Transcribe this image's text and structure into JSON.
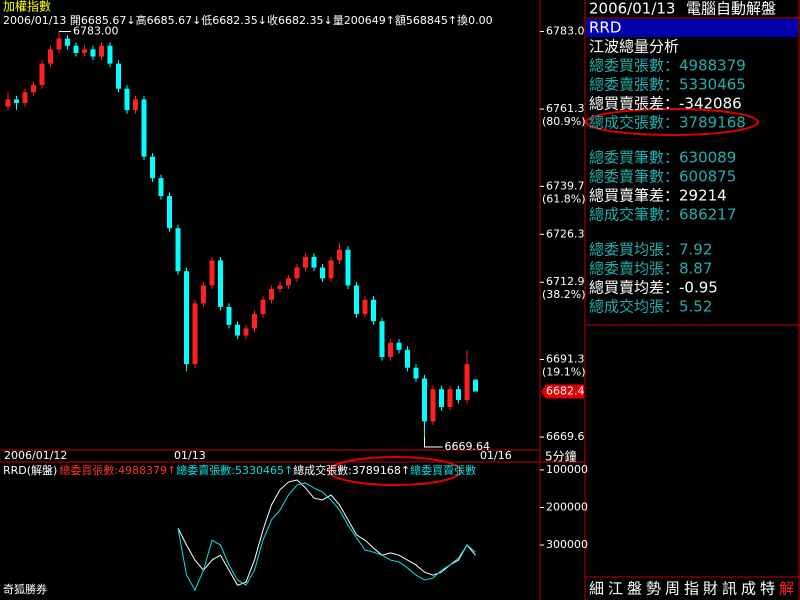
{
  "header": {
    "title": "加權指數",
    "quote": "2006/01/13 開6685.67↓高6685.67↓低6682.35↓收6682.35↓量200649↑額568845↑換0.00"
  },
  "chart_data": [
    {
      "type": "candlestick",
      "up_color": "#ff2020",
      "down_color": "#00ffff",
      "ylim": [
        6666,
        6789
      ],
      "yticks": [
        {
          "value": 6783,
          "label": "6783.0"
        },
        {
          "value": 6761.3,
          "label": "6761.3",
          "sublabel": "(80.9%)"
        },
        {
          "value": 6739.7,
          "label": "6739.7",
          "sublabel": "(61.8%)"
        },
        6726.3,
        {
          "value": 6712.9,
          "label": "6712.9",
          "sublabel": "(38.2%)"
        },
        {
          "value": 6691.3,
          "label": "6691.3",
          "sublabel": "(19.1%)"
        },
        6669.6
      ],
      "x_labels": [
        {
          "index": 0,
          "label": "2006/01/12"
        },
        {
          "index": 20,
          "label": "01/13"
        },
        {
          "index": 56,
          "label": "01/16"
        }
      ],
      "period": "5分鐘",
      "annotations": [
        {
          "index": 6,
          "value": 6783,
          "label": "6783.00",
          "at": "high"
        },
        {
          "index": 49,
          "value": 6669.64,
          "label": "6669.64",
          "at": "low"
        }
      ],
      "last_price": {
        "value": 6682.35,
        "label": "6682.4"
      },
      "ohlc": [
        [
          6762,
          6766,
          6761,
          6764
        ],
        [
          6764,
          6765,
          6761,
          6763
        ],
        [
          6763,
          6767,
          6762,
          6766
        ],
        [
          6766,
          6769,
          6765,
          6768
        ],
        [
          6768,
          6775,
          6767,
          6774
        ],
        [
          6774,
          6779,
          6773,
          6778
        ],
        [
          6778,
          6783,
          6777,
          6781
        ],
        [
          6781,
          6782,
          6778,
          6779
        ],
        [
          6779,
          6780,
          6776,
          6777
        ],
        [
          6777,
          6779,
          6776,
          6778
        ],
        [
          6778,
          6779,
          6775,
          6776
        ],
        [
          6776,
          6780,
          6775,
          6779
        ],
        [
          6779,
          6780,
          6773,
          6774
        ],
        [
          6774,
          6775,
          6766,
          6767
        ],
        [
          6767,
          6768,
          6760,
          6761
        ],
        [
          6761,
          6765,
          6760,
          6764
        ],
        [
          6764,
          6765,
          6747,
          6748
        ],
        [
          6748,
          6749,
          6741,
          6742
        ],
        [
          6742,
          6743,
          6736,
          6737
        ],
        [
          6737,
          6738,
          6727,
          6728
        ],
        [
          6728,
          6729,
          6715,
          6716
        ],
        [
          6716,
          6717,
          6688,
          6690
        ],
        [
          6690,
          6708,
          6689,
          6707
        ],
        [
          6707,
          6713,
          6706,
          6712
        ],
        [
          6712,
          6720,
          6711,
          6719
        ],
        [
          6719,
          6720,
          6705,
          6706
        ],
        [
          6706,
          6707,
          6700,
          6701
        ],
        [
          6701,
          6702,
          6697,
          6698
        ],
        [
          6698,
          6701,
          6697,
          6700
        ],
        [
          6700,
          6705,
          6699,
          6704
        ],
        [
          6704,
          6709,
          6703,
          6708
        ],
        [
          6708,
          6712,
          6707,
          6711
        ],
        [
          6711,
          6713,
          6710,
          6712
        ],
        [
          6712,
          6715,
          6711,
          6714
        ],
        [
          6714,
          6718,
          6713,
          6717
        ],
        [
          6717,
          6721,
          6716,
          6720
        ],
        [
          6720,
          6721,
          6716,
          6717
        ],
        [
          6717,
          6718,
          6713,
          6714
        ],
        [
          6714,
          6720,
          6713,
          6719
        ],
        [
          6719,
          6724,
          6718,
          6722
        ],
        [
          6722,
          6723,
          6711,
          6712
        ],
        [
          6712,
          6713,
          6703,
          6704
        ],
        [
          6704,
          6709,
          6703,
          6708
        ],
        [
          6708,
          6709,
          6701,
          6702
        ],
        [
          6702,
          6703,
          6691,
          6692
        ],
        [
          6692,
          6697,
          6691,
          6696
        ],
        [
          6696,
          6697,
          6693,
          6694
        ],
        [
          6694,
          6695,
          6688,
          6689
        ],
        [
          6689,
          6690,
          6685,
          6686
        ],
        [
          6686,
          6687,
          6669.64,
          6674
        ],
        [
          6674,
          6684,
          6673,
          6683
        ],
        [
          6683,
          6684,
          6677,
          6678
        ],
        [
          6678,
          6684,
          6677,
          6683
        ],
        [
          6683,
          6684,
          6679,
          6680
        ],
        [
          6680,
          6694,
          6679,
          6690
        ],
        [
          6685.67,
          6685.67,
          6682.35,
          6682.35
        ]
      ]
    },
    {
      "type": "line",
      "title": "RRD(解盤)",
      "legend": [
        {
          "text": "總委買張數:4988379↑",
          "color": "#ff3030"
        },
        {
          "text": "總委賣張數:5330465↑",
          "color": "#00e0e0"
        },
        {
          "text": "總成交張數:3789168↑",
          "color": "#ffffff"
        },
        {
          "text": "總委買賣張數",
          "color": "#00e0e0"
        }
      ],
      "ylim": [
        79000,
        433000
      ],
      "inverted": true,
      "yticks": [
        100000,
        200000,
        300000
      ],
      "series": [
        {
          "color": "#ffffff",
          "values": [
            null,
            null,
            null,
            null,
            null,
            null,
            null,
            null,
            null,
            null,
            null,
            null,
            null,
            null,
            null,
            null,
            null,
            null,
            null,
            null,
            255000,
            300000,
            340000,
            367000,
            340000,
            327000,
            367000,
            407000,
            399000,
            340000,
            260000,
            193000,
            153000,
            132000,
            127000,
            148000,
            175000,
            180000,
            167000,
            193000,
            233000,
            273000,
            287000,
            308000,
            327000,
            321000,
            327000,
            340000,
            353000,
            372000,
            380000,
            372000,
            353000,
            340000,
            300000,
            327000
          ]
        },
        {
          "color": "#00e8e8",
          "values": [
            null,
            null,
            null,
            null,
            null,
            null,
            null,
            null,
            null,
            null,
            null,
            null,
            null,
            null,
            null,
            null,
            null,
            null,
            null,
            null,
            255000,
            380000,
            420000,
            367000,
            287000,
            300000,
            353000,
            393000,
            407000,
            367000,
            287000,
            233000,
            207000,
            167000,
            140000,
            135000,
            148000,
            159000,
            180000,
            207000,
            247000,
            281000,
            313000,
            319000,
            327000,
            340000,
            345000,
            361000,
            380000,
            393000,
            388000,
            367000,
            353000,
            335000,
            300000,
            319000
          ]
        }
      ]
    }
  ],
  "side_panel": {
    "date": "2006/01/13",
    "title": "電腦自動解盤",
    "selected": "RRD",
    "heading": "江波總量分析",
    "groups": [
      [
        "總委買張數：4988379",
        "總委賣張數：5330465",
        "總買賣張差：-342086",
        "總成交張數：3789168"
      ],
      [
        "總委買筆數：630089",
        "總委賣筆數：600875",
        "總買賣筆差：29214",
        "總成交筆數：686217"
      ],
      [
        "總委買均張：7.92",
        "總委賣均張：8.87",
        "總買賣均差：-0.95",
        "總成交均張：5.52"
      ]
    ],
    "tabs": [
      "細",
      "江",
      "盤",
      "勢",
      "周",
      "指",
      "財",
      "訊",
      "成",
      "特",
      "解"
    ]
  },
  "footer": {
    "brand": "奇狐勝券"
  }
}
